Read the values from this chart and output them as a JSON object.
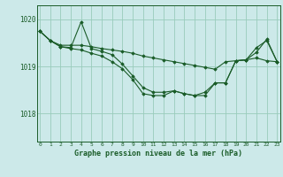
{
  "title": "Graphe pression niveau de la mer (hPa)",
  "background_color": "#cce9e9",
  "grid_color": "#99ccbb",
  "line_color": "#1a5c28",
  "x_ticks": [
    0,
    1,
    2,
    3,
    4,
    5,
    6,
    7,
    8,
    9,
    10,
    11,
    12,
    13,
    14,
    15,
    16,
    17,
    18,
    19,
    20,
    21,
    22,
    23
  ],
  "yticks": [
    1018,
    1019,
    1020
  ],
  "ylim": [
    1017.4,
    1020.3
  ],
  "xlim": [
    -0.3,
    23.3
  ],
  "series1": [
    1019.75,
    1019.55,
    1019.45,
    1019.45,
    1019.45,
    1019.42,
    1019.38,
    1019.35,
    1019.32,
    1019.28,
    1019.22,
    1019.18,
    1019.14,
    1019.1,
    1019.06,
    1019.02,
    1018.98,
    1018.94,
    1019.1,
    1019.12,
    1019.14,
    1019.18,
    1019.12,
    1019.1
  ],
  "series2": [
    1019.75,
    1019.55,
    1019.42,
    1019.4,
    1019.95,
    1019.38,
    1019.32,
    1019.25,
    1019.05,
    1018.8,
    1018.55,
    1018.45,
    1018.45,
    1018.48,
    1018.42,
    1018.38,
    1018.38,
    1018.65,
    1018.65,
    1019.12,
    1019.14,
    1019.4,
    1019.55,
    1019.1
  ],
  "series3": [
    1019.75,
    1019.55,
    1019.42,
    1019.38,
    1019.35,
    1019.28,
    1019.22,
    1019.1,
    1018.95,
    1018.72,
    1018.42,
    1018.38,
    1018.38,
    1018.48,
    1018.42,
    1018.38,
    1018.45,
    1018.65,
    1018.65,
    1019.12,
    1019.14,
    1019.3,
    1019.58,
    1019.1
  ]
}
